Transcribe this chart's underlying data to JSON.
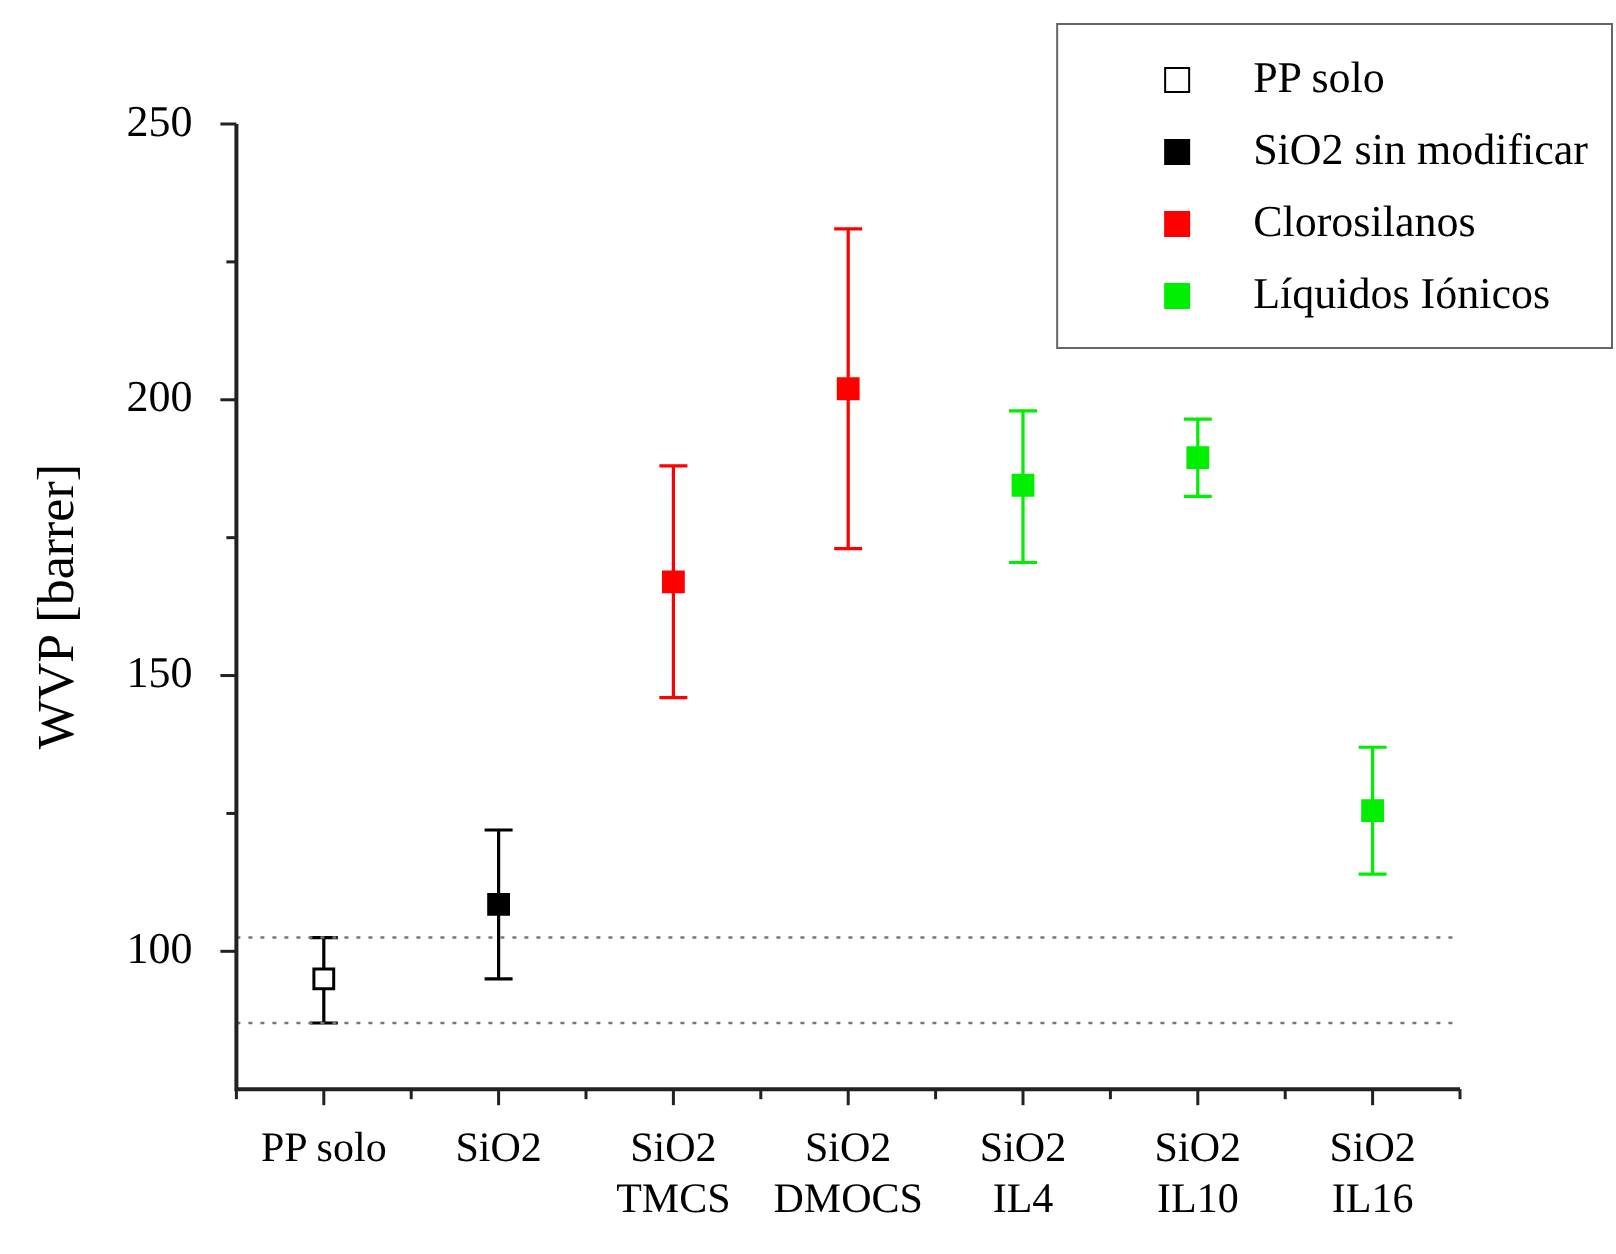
{
  "chart_data": {
    "type": "scatter",
    "ylabel": "WVP [barrer]",
    "categories": [
      "PP solo",
      "SiO2",
      "SiO2\nTMCS",
      "SiO2\nDMOCS",
      "SiO2\nIL4",
      "SiO2\nIL10",
      "SiO2\nIL16"
    ],
    "series": [
      {
        "name": "PP solo",
        "color": "#ffffff",
        "values": [
          95,
          null,
          null,
          null,
          null,
          null,
          null
        ],
        "errors": [
          [
            87,
            102.5
          ],
          null,
          null,
          null,
          null,
          null,
          null
        ]
      },
      {
        "name": "SiO2 sin modificar",
        "color": "#000000",
        "values": [
          null,
          108.5,
          null,
          null,
          null,
          null,
          null
        ],
        "errors": [
          null,
          [
            95,
            122
          ],
          null,
          null,
          null,
          null,
          null
        ]
      },
      {
        "name": "Clorosilanos",
        "color": "#ff0000",
        "values": [
          null,
          null,
          167,
          202,
          null,
          null,
          null
        ],
        "errors": [
          null,
          null,
          [
            146,
            188
          ],
          [
            173,
            231
          ],
          null,
          null,
          null
        ]
      },
      {
        "name": "Líquidos Iónicos",
        "color": "#00ee00",
        "values": [
          null,
          null,
          null,
          null,
          184.5,
          189.5,
          125.5
        ],
        "errors": [
          null,
          null,
          null,
          null,
          [
            170.5,
            198
          ],
          [
            182.5,
            196.5
          ],
          [
            114,
            137
          ]
        ]
      }
    ],
    "ylim": [
      75,
      250
    ],
    "yticks": [
      100,
      {
        "value": 125,
        "label": null
      },
      150,
      {
        "value": 175,
        "label": null
      },
      200,
      {
        "value": 225,
        "label": null
      },
      250
    ],
    "ref_lines": [
      {
        "axis": "y",
        "value": 102.5,
        "color": "#777777",
        "line_style": "dotted"
      },
      {
        "axis": "y",
        "value": 87,
        "color": "#777777",
        "line_style": "dotted"
      }
    ],
    "marker": "square",
    "legend": "top right"
  }
}
